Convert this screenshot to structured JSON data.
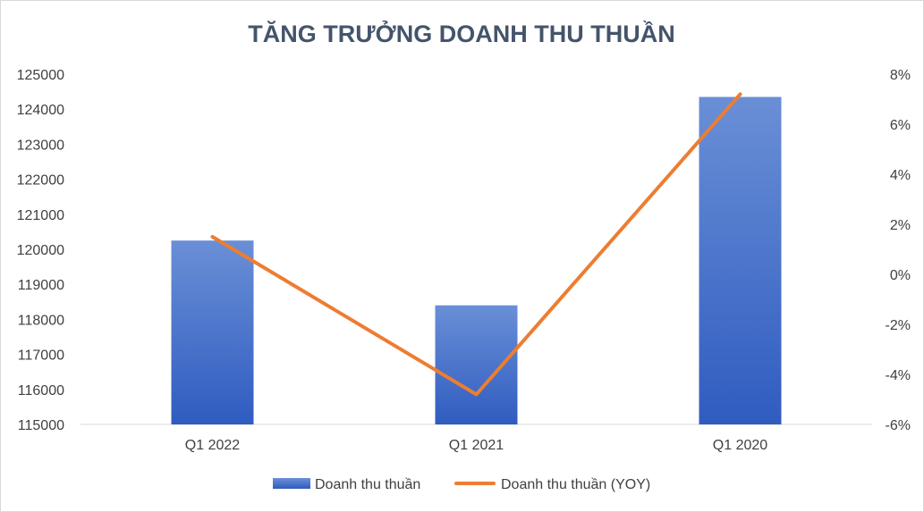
{
  "chart_data": {
    "type": "bar",
    "title": "TĂNG TRƯỞNG DOANH THU THUẦN",
    "categories": [
      "Q1 2022",
      "Q1 2021",
      "Q1 2020"
    ],
    "series": [
      {
        "name": "Doanh thu thuần",
        "type": "bar",
        "axis": "left",
        "values": [
          120250,
          118400,
          124350
        ],
        "color": "#4472c4"
      },
      {
        "name": "Doanh thu thuần (YOY)",
        "type": "line",
        "axis": "right",
        "values": [
          1.5,
          -4.8,
          7.2
        ],
        "color": "#ed7d31"
      }
    ],
    "y_left": {
      "ylim": [
        115000,
        125000
      ],
      "ticks": [
        "115000",
        "116000",
        "117000",
        "118000",
        "119000",
        "120000",
        "121000",
        "122000",
        "123000",
        "124000",
        "125000"
      ]
    },
    "y_right": {
      "ylim": [
        -6,
        8
      ],
      "ticks": [
        "-6%",
        "-4%",
        "-2%",
        "0%",
        "2%",
        "4%",
        "6%",
        "8%"
      ]
    },
    "grid": false,
    "legend": "bottom-center"
  }
}
